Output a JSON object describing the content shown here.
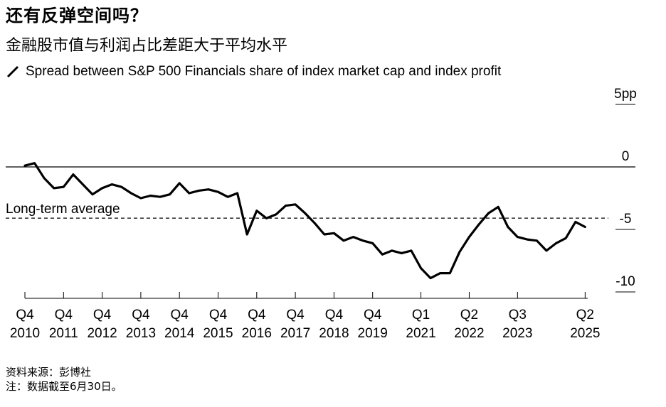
{
  "title": "还有反弹空间吗？",
  "subtitle": "金融股市值与利润占比差距大于平均水平",
  "footer": {
    "source": "资料来源：彭博社",
    "note": "注：数据截至6月30日。"
  },
  "chart_data": {
    "type": "line",
    "legend": "Spread between S&P 500 Financials share of index market cap and index profit",
    "ylabel_unit": "pp",
    "ylim": [
      -10,
      5
    ],
    "y_ticks": [
      {
        "value": 5,
        "label": "5pp"
      },
      {
        "value": 0,
        "label": "0"
      },
      {
        "value": -5,
        "label": "-5"
      },
      {
        "value": -10,
        "label": "-10"
      }
    ],
    "reference_line": {
      "label": "Long-term average",
      "value": -4.1
    },
    "x_ticks": [
      {
        "t": 2010.75,
        "q": "Q4",
        "y": "2010"
      },
      {
        "t": 2011.75,
        "q": "Q4",
        "y": "2011"
      },
      {
        "t": 2012.75,
        "q": "Q4",
        "y": "2012"
      },
      {
        "t": 2013.75,
        "q": "Q4",
        "y": "2013"
      },
      {
        "t": 2014.75,
        "q": "Q4",
        "y": "2014"
      },
      {
        "t": 2015.75,
        "q": "Q4",
        "y": "2015"
      },
      {
        "t": 2016.75,
        "q": "Q4",
        "y": "2016"
      },
      {
        "t": 2017.75,
        "q": "Q4",
        "y": "2017"
      },
      {
        "t": 2018.75,
        "q": "Q4",
        "y": "2018"
      },
      {
        "t": 2019.75,
        "q": "Q4",
        "y": "2019"
      },
      {
        "t": 2021.0,
        "q": "Q1",
        "y": "2021"
      },
      {
        "t": 2022.25,
        "q": "Q2",
        "y": "2022"
      },
      {
        "t": 2023.5,
        "q": "Q3",
        "y": "2023"
      },
      {
        "t": 2025.25,
        "q": "Q2",
        "y": "2025"
      }
    ],
    "series": [
      {
        "name": "Spread",
        "x": [
          2010.75,
          2011.0,
          2011.25,
          2011.5,
          2011.75,
          2012.0,
          2012.25,
          2012.5,
          2012.75,
          2013.0,
          2013.25,
          2013.5,
          2013.75,
          2014.0,
          2014.25,
          2014.5,
          2014.75,
          2015.0,
          2015.25,
          2015.5,
          2015.75,
          2016.0,
          2016.25,
          2016.5,
          2016.75,
          2017.0,
          2017.25,
          2017.5,
          2017.75,
          2018.0,
          2018.25,
          2018.5,
          2018.75,
          2019.0,
          2019.25,
          2019.5,
          2019.75,
          2020.0,
          2020.25,
          2020.5,
          2020.75,
          2021.0,
          2021.25,
          2021.5,
          2021.75,
          2022.0,
          2022.25,
          2022.5,
          2022.75,
          2023.0,
          2023.25,
          2023.5,
          2023.75,
          2024.0,
          2024.25,
          2024.5,
          2024.75,
          2025.0,
          2025.25
        ],
        "values": [
          0.1,
          0.3,
          -0.9,
          -1.7,
          -1.6,
          -0.6,
          -1.4,
          -2.2,
          -1.7,
          -1.4,
          -1.6,
          -2.1,
          -2.5,
          -2.3,
          -2.4,
          -2.2,
          -1.3,
          -2.1,
          -1.9,
          -1.8,
          -2.0,
          -2.4,
          -2.1,
          -5.4,
          -3.5,
          -4.1,
          -3.8,
          -3.1,
          -3.0,
          -3.7,
          -4.5,
          -5.4,
          -5.3,
          -5.9,
          -5.6,
          -5.9,
          -6.1,
          -7.0,
          -6.7,
          -6.9,
          -6.7,
          -8.1,
          -8.9,
          -8.5,
          -8.5,
          -6.8,
          -5.6,
          -4.6,
          -3.7,
          -3.2,
          -4.8,
          -5.6,
          -5.8,
          -5.9,
          -6.7,
          -6.1,
          -5.7,
          -4.4,
          -4.8
        ]
      }
    ]
  }
}
